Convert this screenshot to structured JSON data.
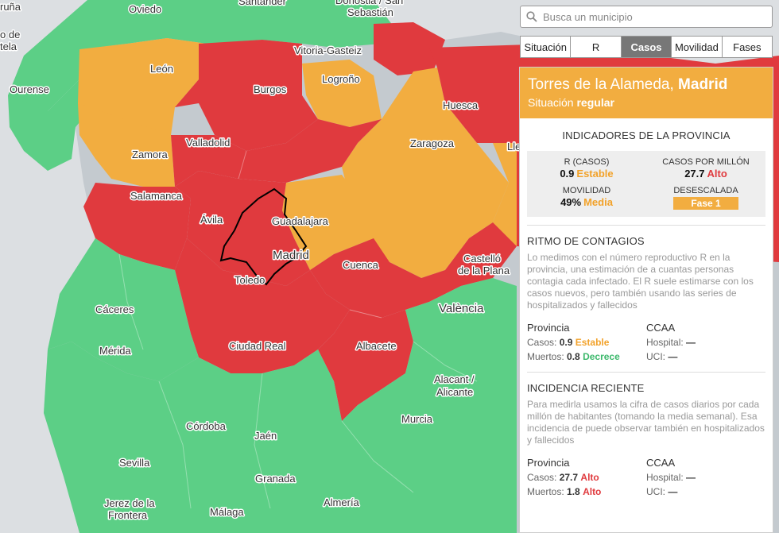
{
  "search": {
    "placeholder": "Busca un municipio"
  },
  "tabs": [
    "Situación",
    "R",
    "Casos",
    "Movilidad",
    "Fases"
  ],
  "active_tab": "Casos",
  "colors": {
    "red": "#e03a3e",
    "orange": "#f2ad40",
    "green": "#5ccf86",
    "grey": "#c4cacf"
  },
  "map": {
    "cities": [
      "Oviedo",
      "Santander",
      "Donostia / San",
      "Sebastián",
      "León",
      "Ourense",
      "Vitoria-Gasteiz",
      "Logroño",
      "Burgos",
      "Huesca",
      "Valladolid",
      "Zamora",
      "Zaragoza",
      "Lle",
      "Salamanca",
      "Guadalajara",
      "Ávila",
      "Madrid",
      "Cuenca",
      "Castelló",
      "de la Plana",
      "Toledo",
      "Cáceres",
      "València",
      "Mérida",
      "Ciudad Real",
      "Albacete",
      "Alacant /",
      "Alicante",
      "Murcia",
      "Córdoba",
      "Jaén",
      "Sevilla",
      "Granada",
      "Jerez de la",
      "Frontera",
      "Málaga",
      "Almería"
    ],
    "edge_labels": [
      "ruña",
      "o de",
      "tela"
    ]
  },
  "panel": {
    "municipality": "Torres de la Alameda,",
    "province": "Madrid",
    "situation_prefix": "Situación",
    "situation": "regular",
    "indicators_title": "INDICADORES DE LA PROVINCIA",
    "indicators": {
      "r_label": "R (CASOS)",
      "r_value": "0.9",
      "r_status": "Estable",
      "cpm_label": "CASOS POR MILLÓN",
      "cpm_value": "27.7",
      "cpm_status": "Alto",
      "mob_label": "MOVILIDAD",
      "mob_value": "49%",
      "mob_status": "Media",
      "desc_label": "DESESCALADA",
      "desc_value": "Fase 1"
    },
    "ritmo": {
      "title": "RITMO DE CONTAGIOS",
      "desc": "Lo medimos con el número reproductivo R en la provincia, una estimación de a cuantas personas contagia cada infectado. El R suele estimarse con los casos nuevos, pero también usando las series de hospitalizados y fallecidos",
      "prov_head": "Provincia",
      "casos_label": "Casos:",
      "casos_value": "0.9",
      "casos_status": "Estable",
      "muertos_label": "Muertos:",
      "muertos_value": "0.8",
      "muertos_status": "Decrece",
      "ccaa_head": "CCAA",
      "hosp_label": "Hospital:",
      "hosp_value": "—",
      "uci_label": "UCI:",
      "uci_value": "—"
    },
    "incidencia": {
      "title": "INCIDENCIA RECIENTE",
      "desc": "Para medirla usamos la cifra de casos diarios por cada millón de habitantes (tomando la media semanal). Esa incidencia de puede observar también en hospitalizados y fallecidos",
      "prov_head": "Provincia",
      "casos_label": "Casos:",
      "casos_value": "27.7",
      "casos_status": "Alto",
      "muertos_label": "Muertos:",
      "muertos_value": "1.8",
      "muertos_status": "Alto",
      "ccaa_head": "CCAA",
      "hosp_label": "Hospital:",
      "hosp_value": "—",
      "uci_label": "UCI:",
      "uci_value": "—"
    }
  }
}
